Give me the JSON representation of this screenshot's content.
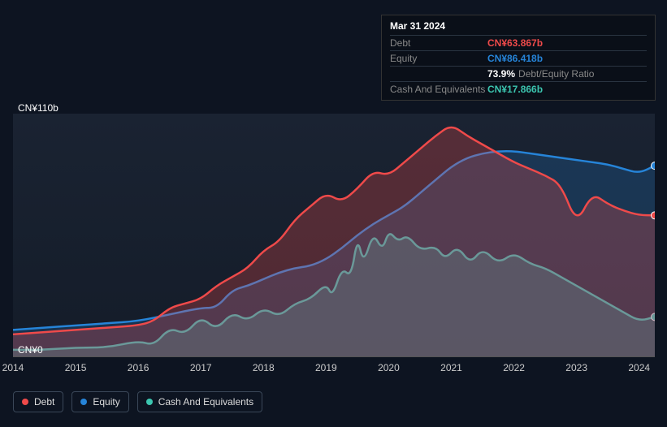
{
  "tooltip": {
    "date": "Mar 31 2024",
    "rows": [
      {
        "label": "Debt",
        "value": "CN¥63.867b",
        "color": "#ef4a4a"
      },
      {
        "label": "Equity",
        "value": "CN¥86.418b",
        "color": "#2684d8"
      },
      {
        "label": "",
        "value": "73.9%",
        "note": "Debt/Equity Ratio",
        "color": "#ffffff"
      },
      {
        "label": "Cash And Equivalents",
        "value": "CN¥17.866b",
        "color": "#3cc6b0"
      }
    ]
  },
  "chart": {
    "type": "area",
    "background_top": "#1a2332",
    "background_bottom": "#141c29",
    "y_max_label": "CN¥110b",
    "y_min_label": "CN¥0",
    "y_max": 110,
    "y_min": 0,
    "x_min": 2014,
    "x_max": 2024.25,
    "x_ticks": [
      2014,
      2015,
      2016,
      2017,
      2018,
      2019,
      2020,
      2021,
      2022,
      2023,
      2024
    ],
    "series": {
      "debt": {
        "label": "Debt",
        "color": "#ef4a4a",
        "fill": "rgba(239,74,74,0.28)",
        "data": [
          [
            2014.0,
            10
          ],
          [
            2014.5,
            11
          ],
          [
            2015.0,
            12
          ],
          [
            2015.5,
            13
          ],
          [
            2016.0,
            14
          ],
          [
            2016.25,
            16
          ],
          [
            2016.5,
            22
          ],
          [
            2016.75,
            24
          ],
          [
            2017.0,
            26
          ],
          [
            2017.25,
            32
          ],
          [
            2017.5,
            36
          ],
          [
            2017.75,
            40
          ],
          [
            2018.0,
            48
          ],
          [
            2018.25,
            52
          ],
          [
            2018.5,
            62
          ],
          [
            2018.75,
            68
          ],
          [
            2019.0,
            74
          ],
          [
            2019.25,
            70
          ],
          [
            2019.5,
            76
          ],
          [
            2019.75,
            84
          ],
          [
            2020.0,
            82
          ],
          [
            2020.25,
            88
          ],
          [
            2020.5,
            94
          ],
          [
            2020.75,
            100
          ],
          [
            2021.0,
            105
          ],
          [
            2021.25,
            100
          ],
          [
            2021.5,
            96
          ],
          [
            2021.75,
            92
          ],
          [
            2022.0,
            88
          ],
          [
            2022.25,
            85
          ],
          [
            2022.5,
            82
          ],
          [
            2022.75,
            78
          ],
          [
            2023.0,
            60
          ],
          [
            2023.25,
            74
          ],
          [
            2023.5,
            69
          ],
          [
            2023.75,
            66
          ],
          [
            2024.0,
            64
          ],
          [
            2024.25,
            63.9
          ]
        ]
      },
      "equity": {
        "label": "Equity",
        "color": "#2684d8",
        "fill": "rgba(38,132,216,0.22)",
        "data": [
          [
            2014.0,
            12
          ],
          [
            2014.5,
            13
          ],
          [
            2015.0,
            14
          ],
          [
            2015.5,
            15
          ],
          [
            2016.0,
            16
          ],
          [
            2016.5,
            19
          ],
          [
            2017.0,
            22
          ],
          [
            2017.25,
            22
          ],
          [
            2017.5,
            30
          ],
          [
            2017.75,
            32
          ],
          [
            2018.0,
            35
          ],
          [
            2018.25,
            38
          ],
          [
            2018.5,
            40
          ],
          [
            2018.75,
            41
          ],
          [
            2019.0,
            44
          ],
          [
            2019.25,
            49
          ],
          [
            2019.5,
            55
          ],
          [
            2019.75,
            60
          ],
          [
            2020.0,
            64
          ],
          [
            2020.25,
            68
          ],
          [
            2020.5,
            74
          ],
          [
            2020.75,
            80
          ],
          [
            2021.0,
            86
          ],
          [
            2021.25,
            90
          ],
          [
            2021.5,
            92
          ],
          [
            2021.75,
            93
          ],
          [
            2022.0,
            93
          ],
          [
            2022.25,
            92
          ],
          [
            2022.5,
            91
          ],
          [
            2022.75,
            90
          ],
          [
            2023.0,
            89
          ],
          [
            2023.25,
            88
          ],
          [
            2023.5,
            87
          ],
          [
            2023.75,
            85
          ],
          [
            2024.0,
            83
          ],
          [
            2024.25,
            86.4
          ]
        ]
      },
      "cash": {
        "label": "Cash And Equivalents",
        "color": "#3cc6b0",
        "fill": "rgba(60,198,176,0.30)",
        "data": [
          [
            2014.0,
            3
          ],
          [
            2014.5,
            3
          ],
          [
            2015.0,
            4
          ],
          [
            2015.5,
            4
          ],
          [
            2016.0,
            7
          ],
          [
            2016.25,
            5
          ],
          [
            2016.5,
            13
          ],
          [
            2016.75,
            10
          ],
          [
            2017.0,
            18
          ],
          [
            2017.25,
            12
          ],
          [
            2017.5,
            20
          ],
          [
            2017.75,
            16
          ],
          [
            2018.0,
            22
          ],
          [
            2018.25,
            18
          ],
          [
            2018.5,
            24
          ],
          [
            2018.75,
            26
          ],
          [
            2019.0,
            33
          ],
          [
            2019.1,
            27
          ],
          [
            2019.25,
            40
          ],
          [
            2019.4,
            36
          ],
          [
            2019.5,
            54
          ],
          [
            2019.6,
            42
          ],
          [
            2019.75,
            56
          ],
          [
            2019.9,
            48
          ],
          [
            2020.0,
            57
          ],
          [
            2020.15,
            52
          ],
          [
            2020.3,
            55
          ],
          [
            2020.5,
            48
          ],
          [
            2020.75,
            50
          ],
          [
            2020.9,
            44
          ],
          [
            2021.1,
            50
          ],
          [
            2021.3,
            42
          ],
          [
            2021.5,
            49
          ],
          [
            2021.75,
            42
          ],
          [
            2022.0,
            47
          ],
          [
            2022.25,
            42
          ],
          [
            2022.5,
            40
          ],
          [
            2022.75,
            36
          ],
          [
            2023.0,
            32
          ],
          [
            2023.25,
            28
          ],
          [
            2023.5,
            24
          ],
          [
            2023.75,
            20
          ],
          [
            2024.0,
            16
          ],
          [
            2024.25,
            17.9
          ]
        ]
      }
    }
  },
  "legend": [
    {
      "label": "Debt",
      "color": "#ef4a4a"
    },
    {
      "label": "Equity",
      "color": "#2684d8"
    },
    {
      "label": "Cash And Equivalents",
      "color": "#3cc6b0"
    }
  ]
}
